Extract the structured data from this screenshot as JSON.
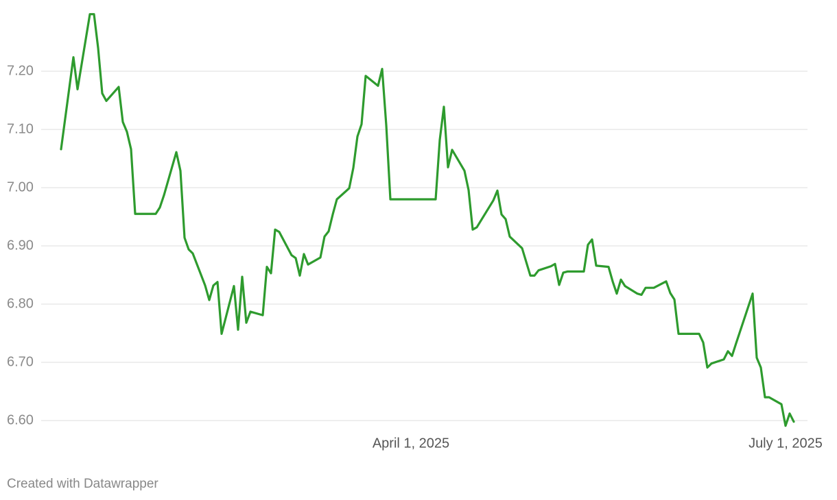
{
  "chart_data": {
    "type": "line",
    "footer": "Created with Datawrapper",
    "x": [
      "2025-01-06",
      "2025-01-09",
      "2025-01-10",
      "2025-01-13",
      "2025-01-14",
      "2025-01-15",
      "2025-01-16",
      "2025-01-17",
      "2025-01-20",
      "2025-01-21",
      "2025-01-22",
      "2025-01-23",
      "2025-01-24",
      "2025-01-29",
      "2025-01-30",
      "2025-01-31",
      "2025-02-03",
      "2025-02-04",
      "2025-02-05",
      "2025-02-06",
      "2025-02-07",
      "2025-02-10",
      "2025-02-11",
      "2025-02-12",
      "2025-02-13",
      "2025-02-14",
      "2025-02-17",
      "2025-02-18",
      "2025-02-19",
      "2025-02-20",
      "2025-02-21",
      "2025-02-24",
      "2025-02-25",
      "2025-02-26",
      "2025-02-27",
      "2025-02-28",
      "2025-03-03",
      "2025-03-04",
      "2025-03-05",
      "2025-03-06",
      "2025-03-07",
      "2025-03-10",
      "2025-03-11",
      "2025-03-12",
      "2025-03-13",
      "2025-03-14",
      "2025-03-17",
      "2025-03-18",
      "2025-03-19",
      "2025-03-20",
      "2025-03-21",
      "2025-03-24",
      "2025-03-25",
      "2025-03-26",
      "2025-03-27",
      "2025-04-07",
      "2025-04-08",
      "2025-04-09",
      "2025-04-10",
      "2025-04-11",
      "2025-04-14",
      "2025-04-15",
      "2025-04-16",
      "2025-04-17",
      "2025-04-21",
      "2025-04-22",
      "2025-04-23",
      "2025-04-24",
      "2025-04-25",
      "2025-04-28",
      "2025-04-30",
      "2025-05-01",
      "2025-05-02",
      "2025-05-05",
      "2025-05-06",
      "2025-05-07",
      "2025-05-08",
      "2025-05-09",
      "2025-05-13",
      "2025-05-14",
      "2025-05-15",
      "2025-05-16",
      "2025-05-19",
      "2025-05-20",
      "2025-05-21",
      "2025-05-22",
      "2025-05-23",
      "2025-05-26",
      "2025-05-27",
      "2025-05-28",
      "2025-05-30",
      "2025-06-02",
      "2025-06-03",
      "2025-06-04",
      "2025-06-05",
      "2025-06-10",
      "2025-06-11",
      "2025-06-12",
      "2025-06-13",
      "2025-06-16",
      "2025-06-17",
      "2025-06-18",
      "2025-06-19",
      "2025-06-23",
      "2025-06-24",
      "2025-06-25",
      "2025-06-26",
      "2025-06-27",
      "2025-06-30",
      "2025-07-01",
      "2025-07-02",
      "2025-07-03"
    ],
    "series": [
      {
        "color": "#2e9b2e",
        "values": [
          7.066,
          7.224,
          7.169,
          7.298,
          7.298,
          7.24,
          7.162,
          7.149,
          7.173,
          7.113,
          7.096,
          7.066,
          6.955,
          6.955,
          6.966,
          6.987,
          7.061,
          7.029,
          6.914,
          6.894,
          6.887,
          6.832,
          6.807,
          6.832,
          6.838,
          6.749,
          6.831,
          6.756,
          6.847,
          6.768,
          6.787,
          6.781,
          6.864,
          6.853,
          6.928,
          6.924,
          6.884,
          6.879,
          6.849,
          6.886,
          6.868,
          6.88,
          6.916,
          6.925,
          6.954,
          6.98,
          6.999,
          7.034,
          7.088,
          7.109,
          7.192,
          7.175,
          7.204,
          7.107,
          6.98,
          6.98,
          7.082,
          7.139,
          7.035,
          7.065,
          7.029,
          6.996,
          6.928,
          6.932,
          6.978,
          6.995,
          6.954,
          6.946,
          6.916,
          6.896,
          6.849,
          6.849,
          6.858,
          6.865,
          6.869,
          6.833,
          6.854,
          6.856,
          6.856,
          6.902,
          6.911,
          6.866,
          6.864,
          6.839,
          6.818,
          6.842,
          6.831,
          6.818,
          6.816,
          6.828,
          6.828,
          6.839,
          6.819,
          6.808,
          6.749,
          6.749,
          6.734,
          6.691,
          6.698,
          6.705,
          6.719,
          6.711,
          6.733,
          6.818,
          6.708,
          6.691,
          6.64,
          6.64,
          6.628,
          6.591,
          6.612,
          6.598
        ]
      }
    ],
    "xlim": [
      "2025-01-06",
      "2025-07-03"
    ],
    "xticks": [
      {
        "value": "2025-04-01",
        "label": "April 1, 2025"
      },
      {
        "value": "2025-07-01",
        "label": "July 1, 2025"
      }
    ],
    "ylim": [
      6.58,
      7.3
    ],
    "yticks": [
      {
        "value": 6.6,
        "label": "6.60"
      },
      {
        "value": 6.7,
        "label": "6.70"
      },
      {
        "value": 6.8,
        "label": "6.80"
      },
      {
        "value": 6.9,
        "label": "6.90"
      },
      {
        "value": 7.0,
        "label": "7.00"
      },
      {
        "value": 7.1,
        "label": "7.10"
      },
      {
        "value": 7.2,
        "label": "7.20"
      }
    ],
    "grid": true
  }
}
